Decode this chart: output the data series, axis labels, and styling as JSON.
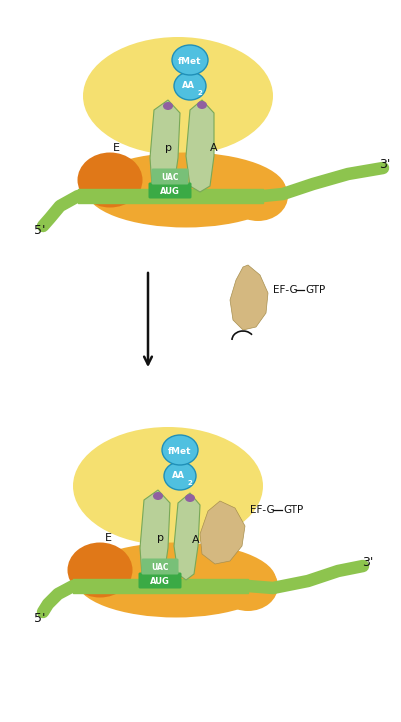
{
  "bg_color": "#ffffff",
  "large_sub_color": "#f5e070",
  "small_sub_color": "#f0a830",
  "orange_patch_color": "#e07818",
  "mrna_color": "#8dc44e",
  "trna_body_color": "#b8d098",
  "trna_edge_color": "#78a858",
  "trna_tip_color": "#9060a0",
  "aug_color": "#3aaa45",
  "uac_color": "#78c078",
  "efg_color": "#d4b880",
  "efg_edge": "#a89050",
  "fmet_color": "#50c0e0",
  "fmet_edge": "#2090b8",
  "aa2_color": "#50c0e0",
  "aa2_edge": "#2090b8",
  "arrow_color": "#111111",
  "text_color": "#111111",
  "label_5prime": "5'",
  "label_3prime": "3'",
  "label_e": "E",
  "label_p": "p",
  "label_a": "A",
  "label_uac": "UAC",
  "label_aug": "AUG",
  "label_fmet": "fMet",
  "label_efg_gtp": "EF-G–GTP",
  "fig_width": 4.01,
  "fig_height": 7.22,
  "dpi": 100
}
